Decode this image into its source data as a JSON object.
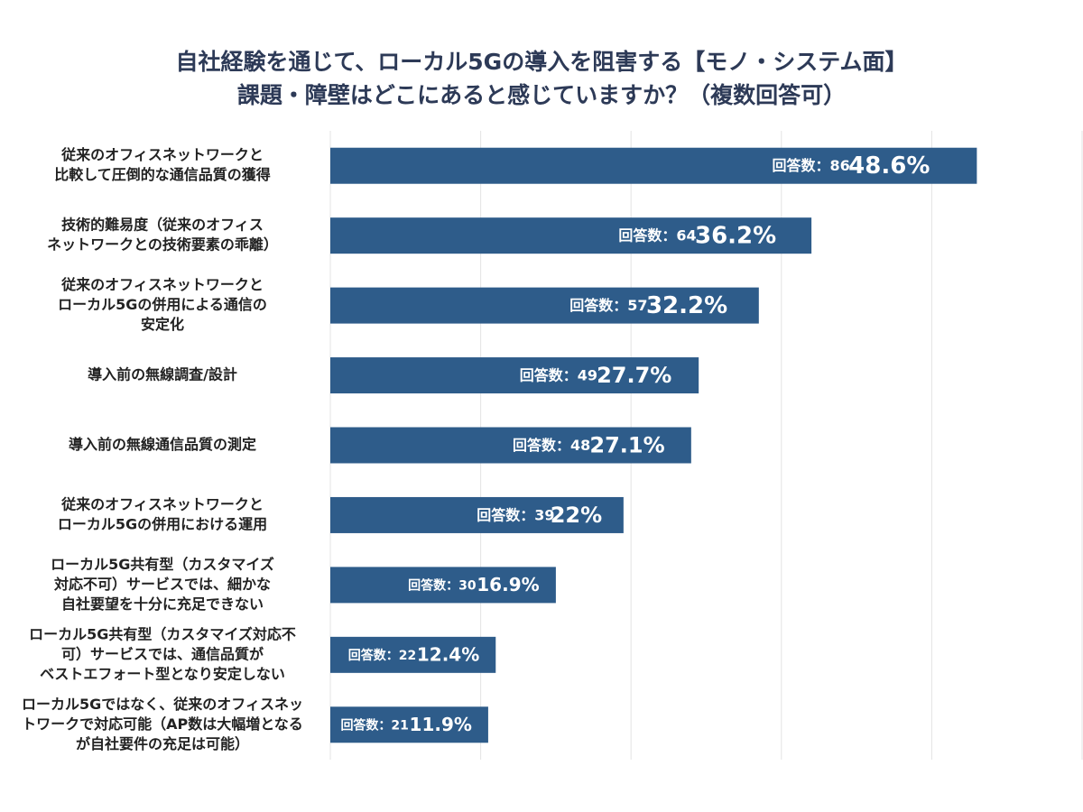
{
  "chart_data": {
    "type": "barh",
    "title": [
      "自社経験を通じて、ローカル5Gの導入を阻害する【モノ・システム面】",
      "課題・障壁はどこにあると感じていますか？（複数回答可）"
    ],
    "categories": [
      [
        "従来のオフィスネットワークと",
        "比較して圧倒的な通信品質の獲得"
      ],
      [
        "技術的難易度（従来のオフィス",
        "ネットワークとの技術要素の乖離）"
      ],
      [
        "従来のオフィスネットワークと",
        "ローカル5Gの併用による通信の",
        "安定化"
      ],
      [
        "導入前の無線調査/設計"
      ],
      [
        "導入前の無線通信品質の測定"
      ],
      [
        "従来のオフィスネットワークと",
        "ローカル5Gの併用における運用"
      ],
      [
        "ローカル5G共有型（カスタマイズ",
        "対応不可）サービスでは、細かな",
        "自社要望を十分に充足できない"
      ],
      [
        "ローカル5G共有型（カスタマイズ対応不",
        "可）サービスでは、通信品質が",
        "ベストエフォート型となり安定しない"
      ],
      [
        "ローカル5Gではなく、従来のオフィスネッ",
        "トワークで対応可能（AP数は大幅増となる",
        "が自社要件の充足は可能）"
      ]
    ],
    "values": [
      86,
      64,
      57,
      49,
      48,
      39,
      30,
      22,
      21
    ],
    "value_labels": [
      "回答数：86",
      "回答数：64",
      "回答数：57",
      "回答数：49",
      "回答数：48",
      "回答数：39",
      "回答数：30",
      "回答数：22",
      "回答数：21"
    ],
    "percent_values": [
      48.6,
      36.2,
      32.2,
      27.7,
      27.1,
      22,
      16.9,
      12.4,
      11.9
    ],
    "percent_labels": [
      "48.6%",
      "36.2%",
      "32.2%",
      "27.7%",
      "27.1%",
      "22%",
      "16.9%",
      "12.4%",
      "11.9%"
    ],
    "color": "#2e5c8a",
    "xlim": [
      0,
      100
    ],
    "xticks": [
      0,
      20,
      40,
      60,
      80,
      100
    ],
    "grid": true
  }
}
